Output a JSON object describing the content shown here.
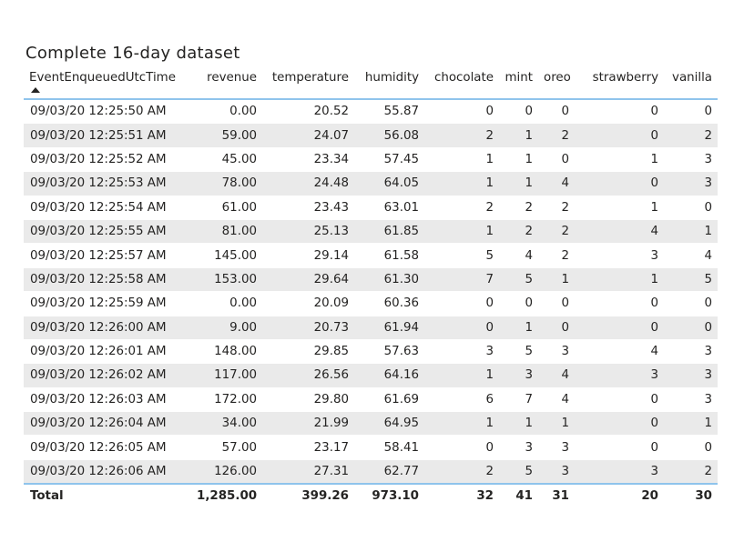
{
  "visual": {
    "title": "Complete 16-day dataset"
  },
  "table": {
    "columns": [
      "EventEnqueuedUtcTime",
      "revenue",
      "temperature",
      "humidity",
      "chocolate",
      "mint",
      "oreo",
      "strawberry",
      "vanilla"
    ],
    "sort": {
      "column": "EventEnqueuedUtcTime",
      "direction": "ascending"
    },
    "rows": [
      [
        "09/03/20 12:25:50 AM",
        "0.00",
        "20.52",
        "55.87",
        "0",
        "0",
        "0",
        "0",
        "0"
      ],
      [
        "09/03/20 12:25:51 AM",
        "59.00",
        "24.07",
        "56.08",
        "2",
        "1",
        "2",
        "0",
        "2"
      ],
      [
        "09/03/20 12:25:52 AM",
        "45.00",
        "23.34",
        "57.45",
        "1",
        "1",
        "0",
        "1",
        "3"
      ],
      [
        "09/03/20 12:25:53 AM",
        "78.00",
        "24.48",
        "64.05",
        "1",
        "1",
        "4",
        "0",
        "3"
      ],
      [
        "09/03/20 12:25:54 AM",
        "61.00",
        "23.43",
        "63.01",
        "2",
        "2",
        "2",
        "1",
        "0"
      ],
      [
        "09/03/20 12:25:55 AM",
        "81.00",
        "25.13",
        "61.85",
        "1",
        "2",
        "2",
        "4",
        "1"
      ],
      [
        "09/03/20 12:25:57 AM",
        "145.00",
        "29.14",
        "61.58",
        "5",
        "4",
        "2",
        "3",
        "4"
      ],
      [
        "09/03/20 12:25:58 AM",
        "153.00",
        "29.64",
        "61.30",
        "7",
        "5",
        "1",
        "1",
        "5"
      ],
      [
        "09/03/20 12:25:59 AM",
        "0.00",
        "20.09",
        "60.36",
        "0",
        "0",
        "0",
        "0",
        "0"
      ],
      [
        "09/03/20 12:26:00 AM",
        "9.00",
        "20.73",
        "61.94",
        "0",
        "1",
        "0",
        "0",
        "0"
      ],
      [
        "09/03/20 12:26:01 AM",
        "148.00",
        "29.85",
        "57.63",
        "3",
        "5",
        "3",
        "4",
        "3"
      ],
      [
        "09/03/20 12:26:02 AM",
        "117.00",
        "26.56",
        "64.16",
        "1",
        "3",
        "4",
        "3",
        "3"
      ],
      [
        "09/03/20 12:26:03 AM",
        "172.00",
        "29.80",
        "61.69",
        "6",
        "7",
        "4",
        "0",
        "3"
      ],
      [
        "09/03/20 12:26:04 AM",
        "34.00",
        "21.99",
        "64.95",
        "1",
        "1",
        "1",
        "0",
        "1"
      ],
      [
        "09/03/20 12:26:05 AM",
        "57.00",
        "23.17",
        "58.41",
        "0",
        "3",
        "3",
        "0",
        "0"
      ],
      [
        "09/03/20 12:26:06 AM",
        "126.00",
        "27.31",
        "62.77",
        "2",
        "5",
        "3",
        "3",
        "2"
      ]
    ],
    "totals": [
      "Total",
      "1,285.00",
      "399.26",
      "973.10",
      "32",
      "41",
      "31",
      "20",
      "30"
    ]
  },
  "colors": {
    "header_border": "#8fc4ec",
    "stripe": "#eaeaea",
    "text": "#252423"
  },
  "icons": {
    "sort": "sort-ascending-icon"
  }
}
